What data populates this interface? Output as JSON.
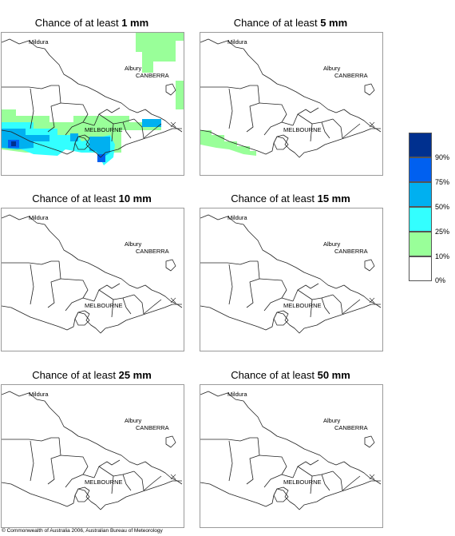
{
  "panels": [
    {
      "prefix": "Chance of at least",
      "amount": "1 mm"
    },
    {
      "prefix": "Chance of at least",
      "amount": "5 mm"
    },
    {
      "prefix": "Chance of at least",
      "amount": "10 mm"
    },
    {
      "prefix": "Chance of at least",
      "amount": "15 mm"
    },
    {
      "prefix": "Chance of at least",
      "amount": "25 mm"
    },
    {
      "prefix": "Chance of at least",
      "amount": "50 mm"
    }
  ],
  "map_labels": {
    "mildura": "Mildura",
    "canberra": "CANBERRA",
    "albury": "Albury",
    "melbourne": "MELBOURNE"
  },
  "legend": {
    "labels": [
      "90%",
      "75%",
      "50%",
      "25%",
      "10%",
      "0%"
    ],
    "colors": [
      "#00308f",
      "#0060f0",
      "#00b0f0",
      "#33ffff",
      "#99ff99",
      "#ffffff"
    ]
  },
  "footer": "© Commonwealth of Australia 2006, Australian Bureau of Meteorology"
}
